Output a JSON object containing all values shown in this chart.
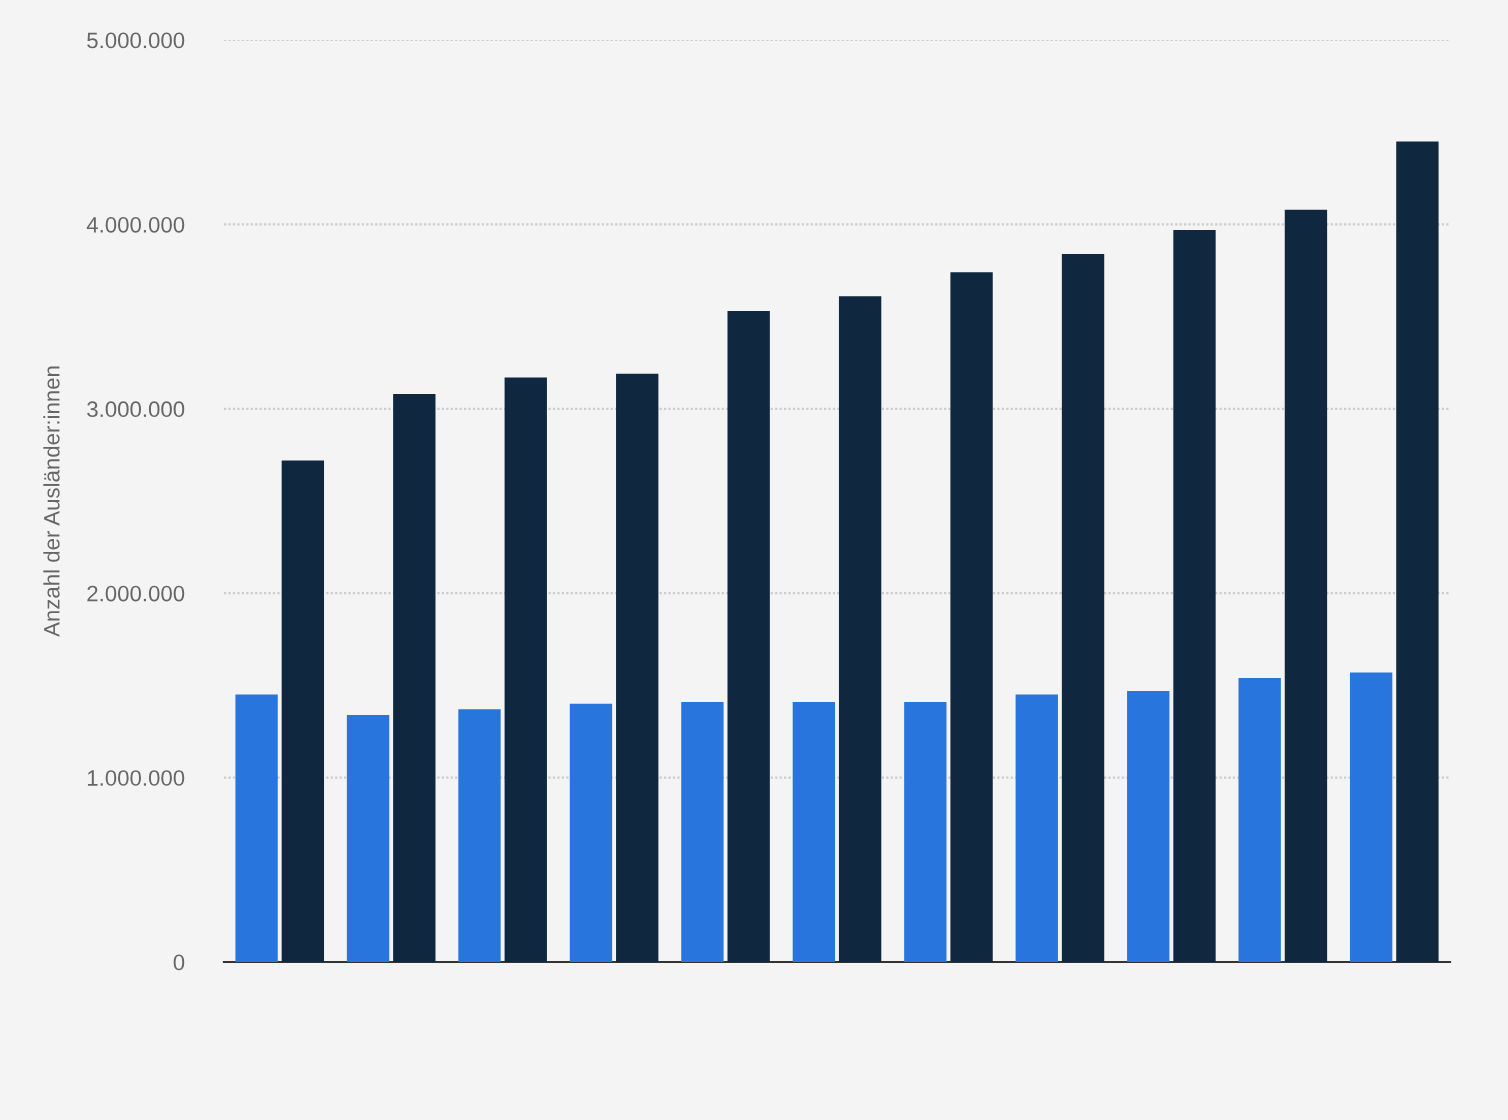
{
  "chart_data": {
    "type": "bar",
    "ylabel": "Anzahl der Ausländer:innen",
    "categories": [
      null,
      null,
      null,
      null,
      null,
      null,
      null,
      null,
      null,
      null,
      null
    ],
    "series": [
      {
        "color": "#2876dd",
        "values": [
          1450000,
          1340000,
          1370000,
          1400000,
          1410000,
          1410000,
          1410000,
          1450000,
          1470000,
          1540000,
          1570000
        ]
      },
      {
        "color": "#0f2840",
        "values": [
          2720000,
          3080000,
          3170000,
          3190000,
          3530000,
          3610000,
          3740000,
          3840000,
          3970000,
          4080000,
          4450000
        ]
      }
    ],
    "ylim": [
      0,
      5000000
    ],
    "yticks": [
      {
        "value": 0,
        "label": "0"
      },
      {
        "value": 1000000,
        "label": "1.000.000"
      },
      {
        "value": 2000000,
        "label": "2.000.000"
      },
      {
        "value": 3000000,
        "label": "3.000.000"
      },
      {
        "value": 4000000,
        "label": "4.000.000"
      },
      {
        "value": 5000000,
        "label": "5.000.000"
      }
    ],
    "grid": "y",
    "legend": false
  }
}
